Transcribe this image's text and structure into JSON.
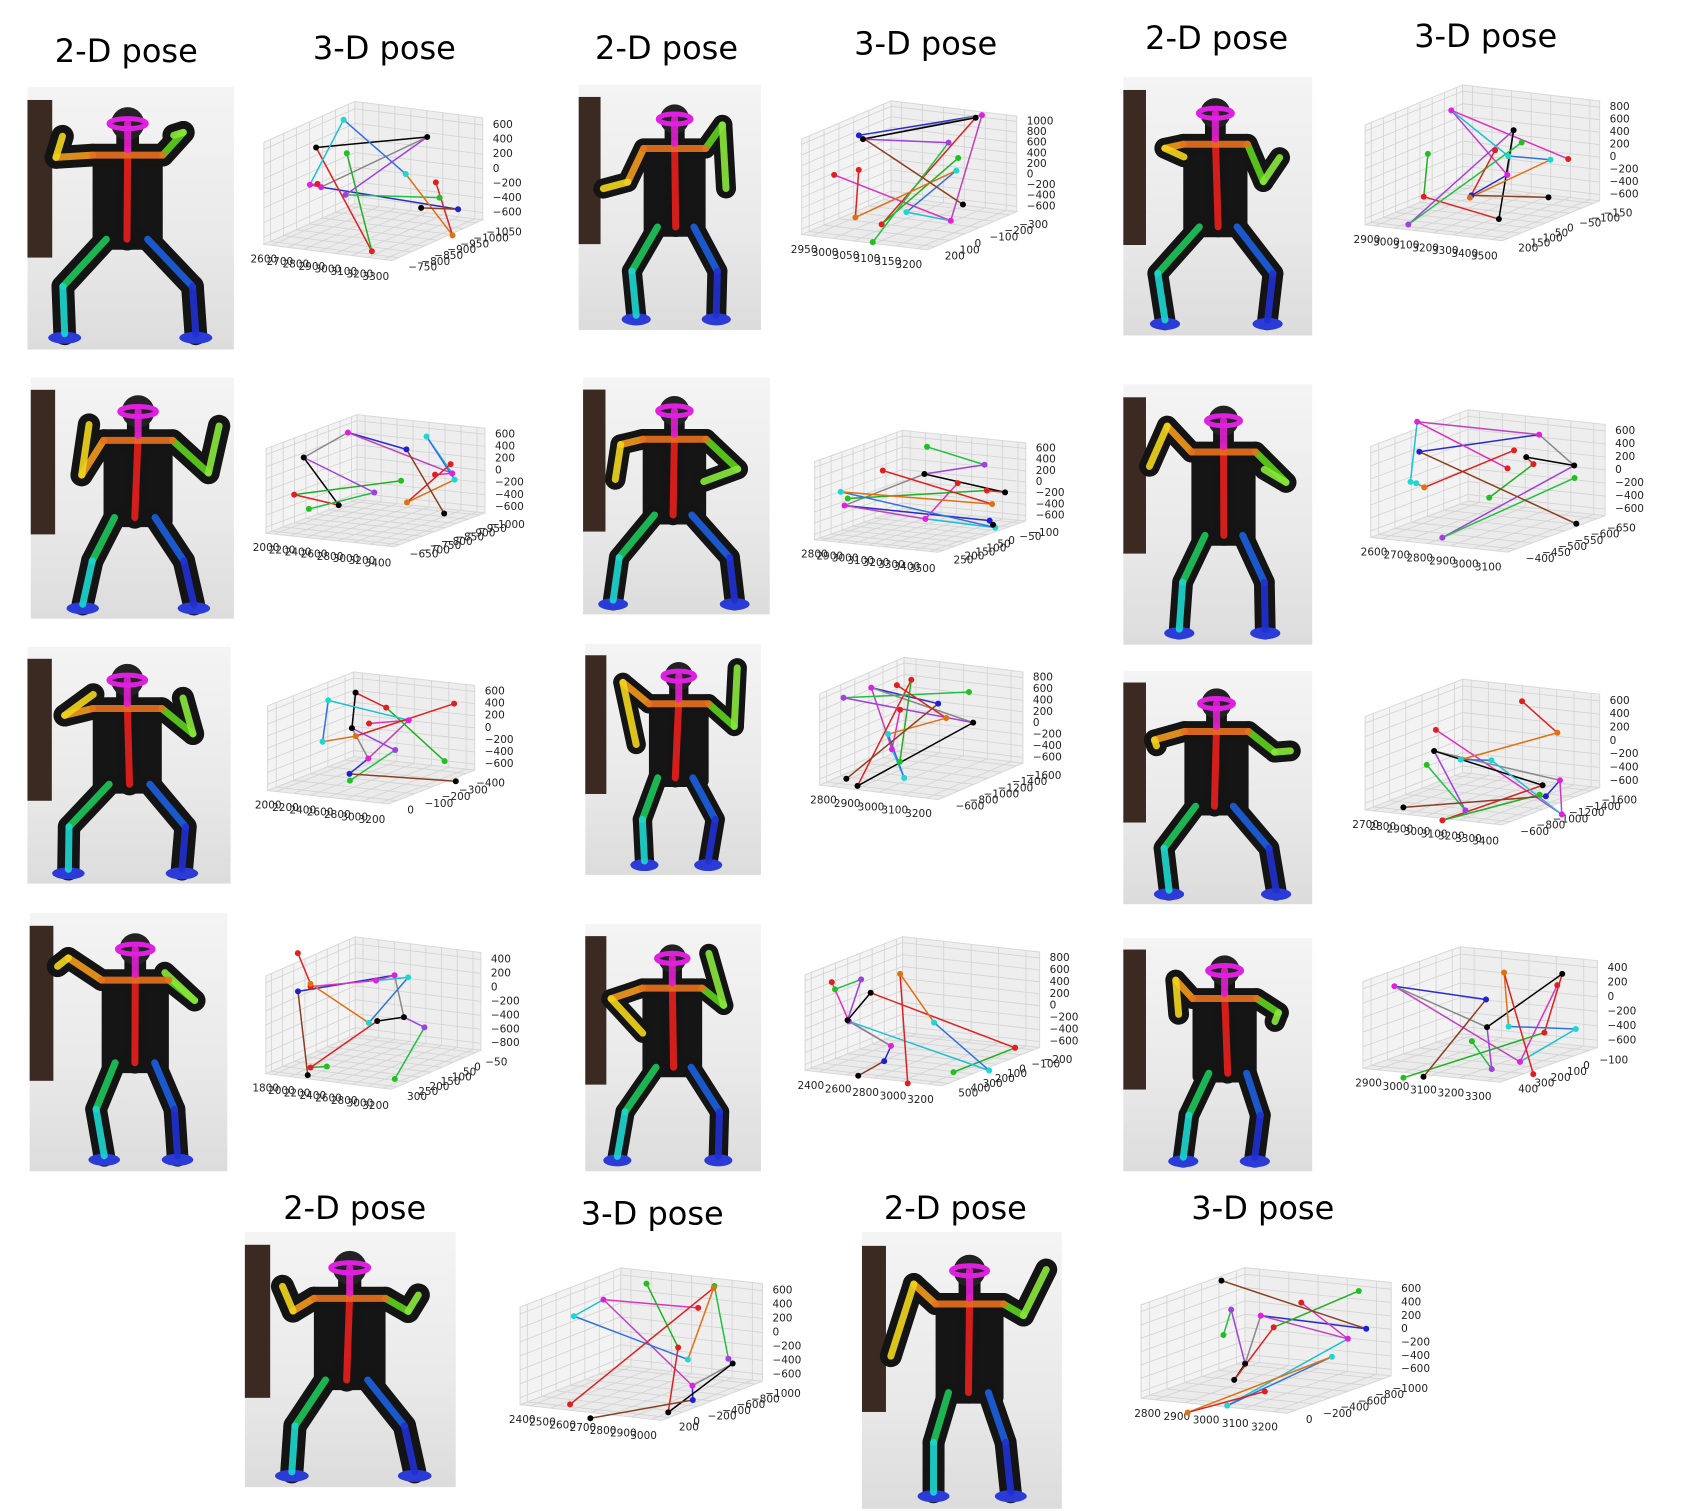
{
  "figure": {
    "panels": [
      {
        "pose2d_title": "2-D pose",
        "pose3d_title": "3-D pose",
        "x_ticks": [
          "2600",
          "2700",
          "2800",
          "2900",
          "3000",
          "3100",
          "3200",
          "3300"
        ],
        "y_ticks": [
          "−750",
          "−800",
          "−850",
          "−900",
          "−950",
          "−1000",
          "−1050"
        ],
        "z_ticks": [
          "600",
          "400",
          "200",
          "0",
          "−200",
          "−400",
          "−600"
        ]
      },
      {
        "pose2d_title": "2-D pose",
        "pose3d_title": "3-D pose",
        "x_ticks": [
          "2950",
          "3000",
          "3050",
          "3100",
          "3150",
          "3200"
        ],
        "y_ticks": [
          "200",
          "100",
          "0",
          "−100",
          "−200",
          "−300"
        ],
        "z_ticks": [
          "1000",
          "800",
          "600",
          "400",
          "200",
          "0",
          "−200",
          "−400",
          "−600"
        ]
      },
      {
        "pose2d_title": "2-D pose",
        "pose3d_title": "3-D pose",
        "x_ticks": [
          "2900",
          "3000",
          "3100",
          "3200",
          "3300",
          "3400",
          "3500"
        ],
        "y_ticks": [
          "200",
          "150",
          "100",
          "50",
          "0",
          "−50",
          "−100",
          "−150"
        ],
        "z_ticks": [
          "800",
          "600",
          "400",
          "200",
          "0",
          "−200",
          "−400",
          "−600"
        ]
      },
      {
        "x_ticks": [
          "2000",
          "2200",
          "2400",
          "2600",
          "2800",
          "3000",
          "3200",
          "3400"
        ],
        "y_ticks": [
          "−650",
          "−700",
          "−750",
          "−800",
          "−850",
          "−900",
          "−950",
          "−1000"
        ],
        "z_ticks": [
          "600",
          "400",
          "200",
          "0",
          "−200",
          "−400",
          "−600"
        ]
      },
      {
        "x_ticks": [
          "2800",
          "2900",
          "3000",
          "3100",
          "3200",
          "3300",
          "3400",
          "3500"
        ],
        "y_ticks": [
          "250",
          "200",
          "150",
          "100",
          "50",
          "0",
          "−50",
          "−100"
        ],
        "z_ticks": [
          "600",
          "400",
          "200",
          "0",
          "−200",
          "−400",
          "−600"
        ]
      },
      {
        "x_ticks": [
          "2600",
          "2700",
          "2800",
          "2900",
          "3000",
          "3100"
        ],
        "y_ticks": [
          "−400",
          "−450",
          "−500",
          "−550",
          "−600",
          "−650"
        ],
        "z_ticks": [
          "600",
          "400",
          "200",
          "0",
          "−200",
          "−400",
          "−600"
        ]
      },
      {
        "x_ticks": [
          "2000",
          "2200",
          "2400",
          "2600",
          "2800",
          "3000",
          "3200"
        ],
        "y_ticks": [
          "0",
          "−100",
          "−200",
          "−300",
          "−400"
        ],
        "z_ticks": [
          "600",
          "400",
          "200",
          "0",
          "−200",
          "−400",
          "−600"
        ]
      },
      {
        "x_ticks": [
          "2800",
          "2900",
          "3000",
          "3100",
          "3200"
        ],
        "y_ticks": [
          "−600",
          "−800",
          "−1000",
          "−1200",
          "−1400",
          "−1600"
        ],
        "z_ticks": [
          "800",
          "600",
          "400",
          "200",
          "0",
          "−200",
          "−400",
          "−600"
        ]
      },
      {
        "x_ticks": [
          "2700",
          "2800",
          "2900",
          "3000",
          "3100",
          "3200",
          "3300",
          "3400"
        ],
        "y_ticks": [
          "−600",
          "−800",
          "−1000",
          "−1200",
          "−1400",
          "−1600"
        ],
        "z_ticks": [
          "600",
          "400",
          "200",
          "0",
          "−200",
          "−400",
          "−600"
        ]
      },
      {
        "x_ticks": [
          "1800",
          "2000",
          "2200",
          "2400",
          "2600",
          "2800",
          "3000",
          "3200"
        ],
        "y_ticks": [
          "300",
          "250",
          "200",
          "150",
          "100",
          "50",
          "0",
          "−50"
        ],
        "z_ticks": [
          "400",
          "200",
          "0",
          "−200",
          "−400",
          "−600",
          "−800"
        ]
      },
      {
        "x_ticks": [
          "2400",
          "2600",
          "2800",
          "3000",
          "3200"
        ],
        "y_ticks": [
          "500",
          "400",
          "300",
          "200",
          "100",
          "0",
          "−100",
          "−200"
        ],
        "z_ticks": [
          "800",
          "600",
          "400",
          "200",
          "0",
          "−200",
          "−400",
          "−600"
        ]
      },
      {
        "x_ticks": [
          "2900",
          "3000",
          "3100",
          "3200",
          "3300"
        ],
        "y_ticks": [
          "400",
          "300",
          "200",
          "100",
          "0",
          "−100"
        ],
        "z_ticks": [
          "400",
          "200",
          "0",
          "−200",
          "−400",
          "−600"
        ]
      },
      {
        "pose2d_title": "2-D pose",
        "pose3d_title": "3-D pose",
        "x_ticks": [
          "2400",
          "2500",
          "2600",
          "2700",
          "2800",
          "2900",
          "3000"
        ],
        "y_ticks": [
          "200",
          "0",
          "−200",
          "−400",
          "−600",
          "−800",
          "−1000"
        ],
        "z_ticks": [
          "600",
          "400",
          "200",
          "0",
          "−200",
          "−400",
          "−600"
        ]
      },
      {
        "pose2d_title": "2-D pose",
        "pose3d_title": "3-D pose",
        "x_ticks": [
          "2800",
          "2900",
          "3000",
          "3100",
          "3200"
        ],
        "y_ticks": [
          "0",
          "−200",
          "−400",
          "−600",
          "−800",
          "−1000"
        ],
        "z_ticks": [
          "600",
          "400",
          "200",
          "0",
          "−200",
          "−400",
          "−600"
        ]
      }
    ]
  }
}
